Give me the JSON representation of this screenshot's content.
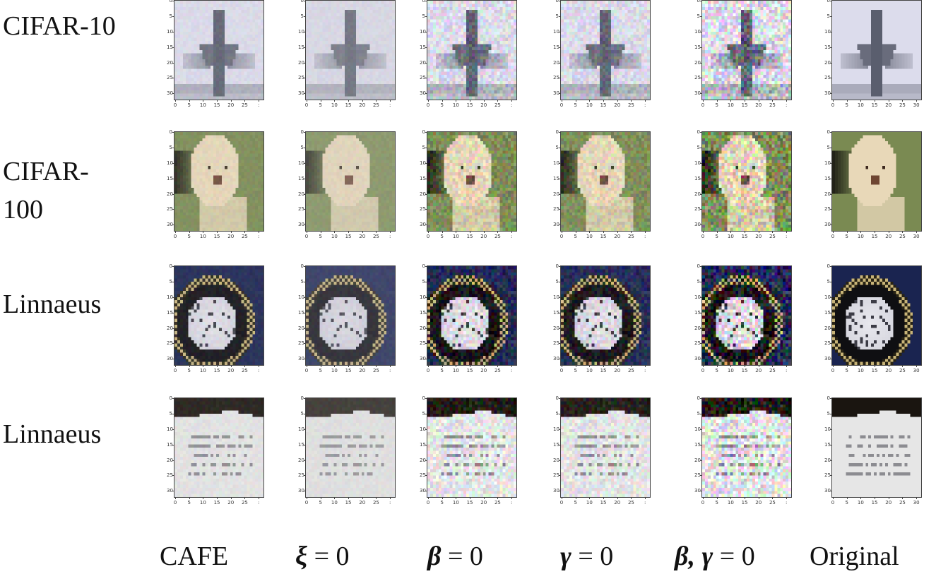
{
  "row_labels": [
    "CIFAR-10",
    "CIFAR-\n100",
    "Linnaeus",
    "Linnaeus"
  ],
  "column_labels": [
    {
      "prefix": "CAFE",
      "symbol": "",
      "suffix": ""
    },
    {
      "prefix": "",
      "symbol": "ξ",
      "suffix": " = 0"
    },
    {
      "prefix": "",
      "symbol": "β",
      "suffix": " = 0"
    },
    {
      "prefix": "",
      "symbol": "γ",
      "suffix": " = 0"
    },
    {
      "prefix": "",
      "symbol": "β, γ",
      "suffix": " = 0"
    },
    {
      "prefix": "Original",
      "symbol": "",
      "suffix": ""
    }
  ],
  "y_ticks": [
    "0",
    "5",
    "10",
    "15",
    "20",
    "25",
    "30"
  ],
  "x_ticks_truncated": [
    "0",
    "5",
    "10",
    "15",
    "20",
    "25",
    ":"
  ],
  "x_ticks_full": [
    "0",
    "5",
    "10",
    "15",
    "20",
    "25",
    "30"
  ],
  "image_subjects": [
    "airplane",
    "dog",
    "watch",
    "book-page"
  ],
  "colors": {
    "airplane_sky": "#dcdcec",
    "airplane_body": "#4c5060",
    "dog_bg": "#7a8a52",
    "dog_fur": "#e8d8b8",
    "watch_bg": "#1a2450",
    "watch_face": "#e8e8ee",
    "page_white": "#e6e6e6",
    "page_dark": "#1a1510"
  }
}
